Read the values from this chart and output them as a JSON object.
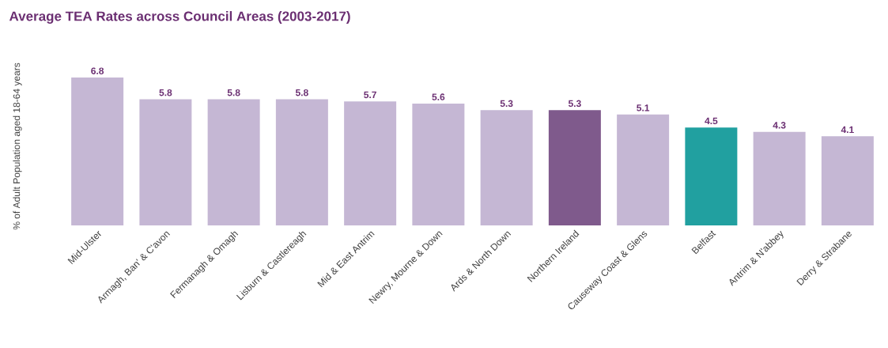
{
  "chart_data": {
    "type": "bar",
    "title": "Average TEA Rates across Council Areas (2003-2017)",
    "ylabel": "% of Adult Population aged 18-64 years",
    "categories": [
      "Mid-Ulster",
      "Armagh, Ban' & C'avon",
      "Fermanagh & Omagh",
      "Lisburn & Castlereagh",
      "Mid & East Antrim",
      "Newry, Mourne & Down",
      "Ards & North Down",
      "Northern Ireland",
      "Causeway Coast & Glens",
      "Belfast",
      "Antrim & N'abbey",
      "Derry & Strabane"
    ],
    "values": [
      6.8,
      5.8,
      5.8,
      5.8,
      5.7,
      5.6,
      5.3,
      5.3,
      5.1,
      4.5,
      4.3,
      4.1
    ],
    "colors": [
      "#c5b7d4",
      "#c5b7d4",
      "#c5b7d4",
      "#c5b7d4",
      "#c5b7d4",
      "#c5b7d4",
      "#c5b7d4",
      "#7f5a8c",
      "#c5b7d4",
      "#21a0a0",
      "#c5b7d4",
      "#c5b7d4"
    ],
    "data_labels": true
  }
}
